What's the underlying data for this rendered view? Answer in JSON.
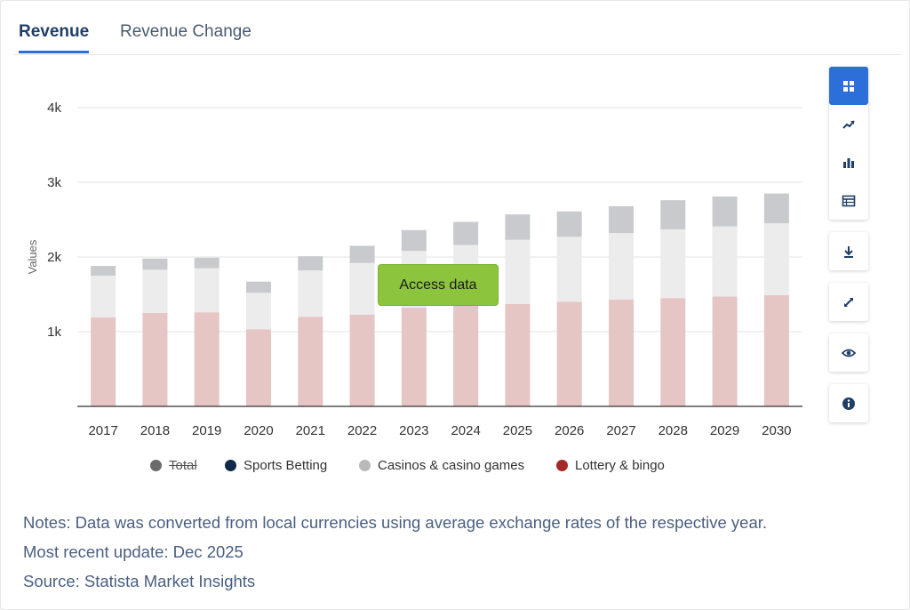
{
  "tabs": {
    "revenue": "Revenue",
    "revenue_change": "Revenue Change"
  },
  "access_button": "Access data",
  "legend": [
    {
      "label": "Total",
      "color": "#6b6b6b",
      "hidden": true
    },
    {
      "label": "Sports Betting",
      "color": "#0f2a4a",
      "hidden": false
    },
    {
      "label": "Casinos & casino games",
      "color": "#b9b9b9",
      "hidden": false
    },
    {
      "label": "Lottery & bingo",
      "color": "#a32a26",
      "hidden": false
    }
  ],
  "toolbar": [
    "grid-icon",
    "trend-icon",
    "bar-chart-icon",
    "table-icon",
    "download-icon",
    "expand-icon",
    "eye-icon",
    "info-icon"
  ],
  "notes": {
    "line1": "Notes: Data was converted from local currencies using average exchange rates of the respective year.",
    "line2": "Most recent update: Dec 2025",
    "line3": "Source: Statista Market Insights"
  },
  "chart_data": {
    "type": "bar",
    "stacked": true,
    "ylabel": "Values",
    "xlabel": "",
    "ylim": [
      0,
      4000
    ],
    "yticks": [
      1000,
      2000,
      3000,
      4000
    ],
    "ytick_labels": [
      "1k",
      "2k",
      "3k",
      "4k"
    ],
    "grid": true,
    "categories": [
      "2017",
      "2018",
      "2019",
      "2020",
      "2021",
      "2022",
      "2023",
      "2024",
      "2025",
      "2026",
      "2027",
      "2028",
      "2029",
      "2030"
    ],
    "series": [
      {
        "name": "Lottery & bingo",
        "color": "#e6c5c5",
        "values": [
          1190,
          1250,
          1260,
          1030,
          1200,
          1230,
          1320,
          1360,
          1370,
          1400,
          1430,
          1450,
          1470,
          1490
        ]
      },
      {
        "name": "Casinos & casino games",
        "color": "#ececec",
        "values": [
          560,
          580,
          590,
          490,
          620,
          690,
          760,
          800,
          860,
          870,
          890,
          920,
          940,
          960
        ]
      },
      {
        "name": "Sports Betting",
        "color": "#c8cacd",
        "values": [
          130,
          150,
          140,
          150,
          190,
          230,
          280,
          310,
          340,
          340,
          360,
          390,
          400,
          400
        ]
      }
    ]
  }
}
